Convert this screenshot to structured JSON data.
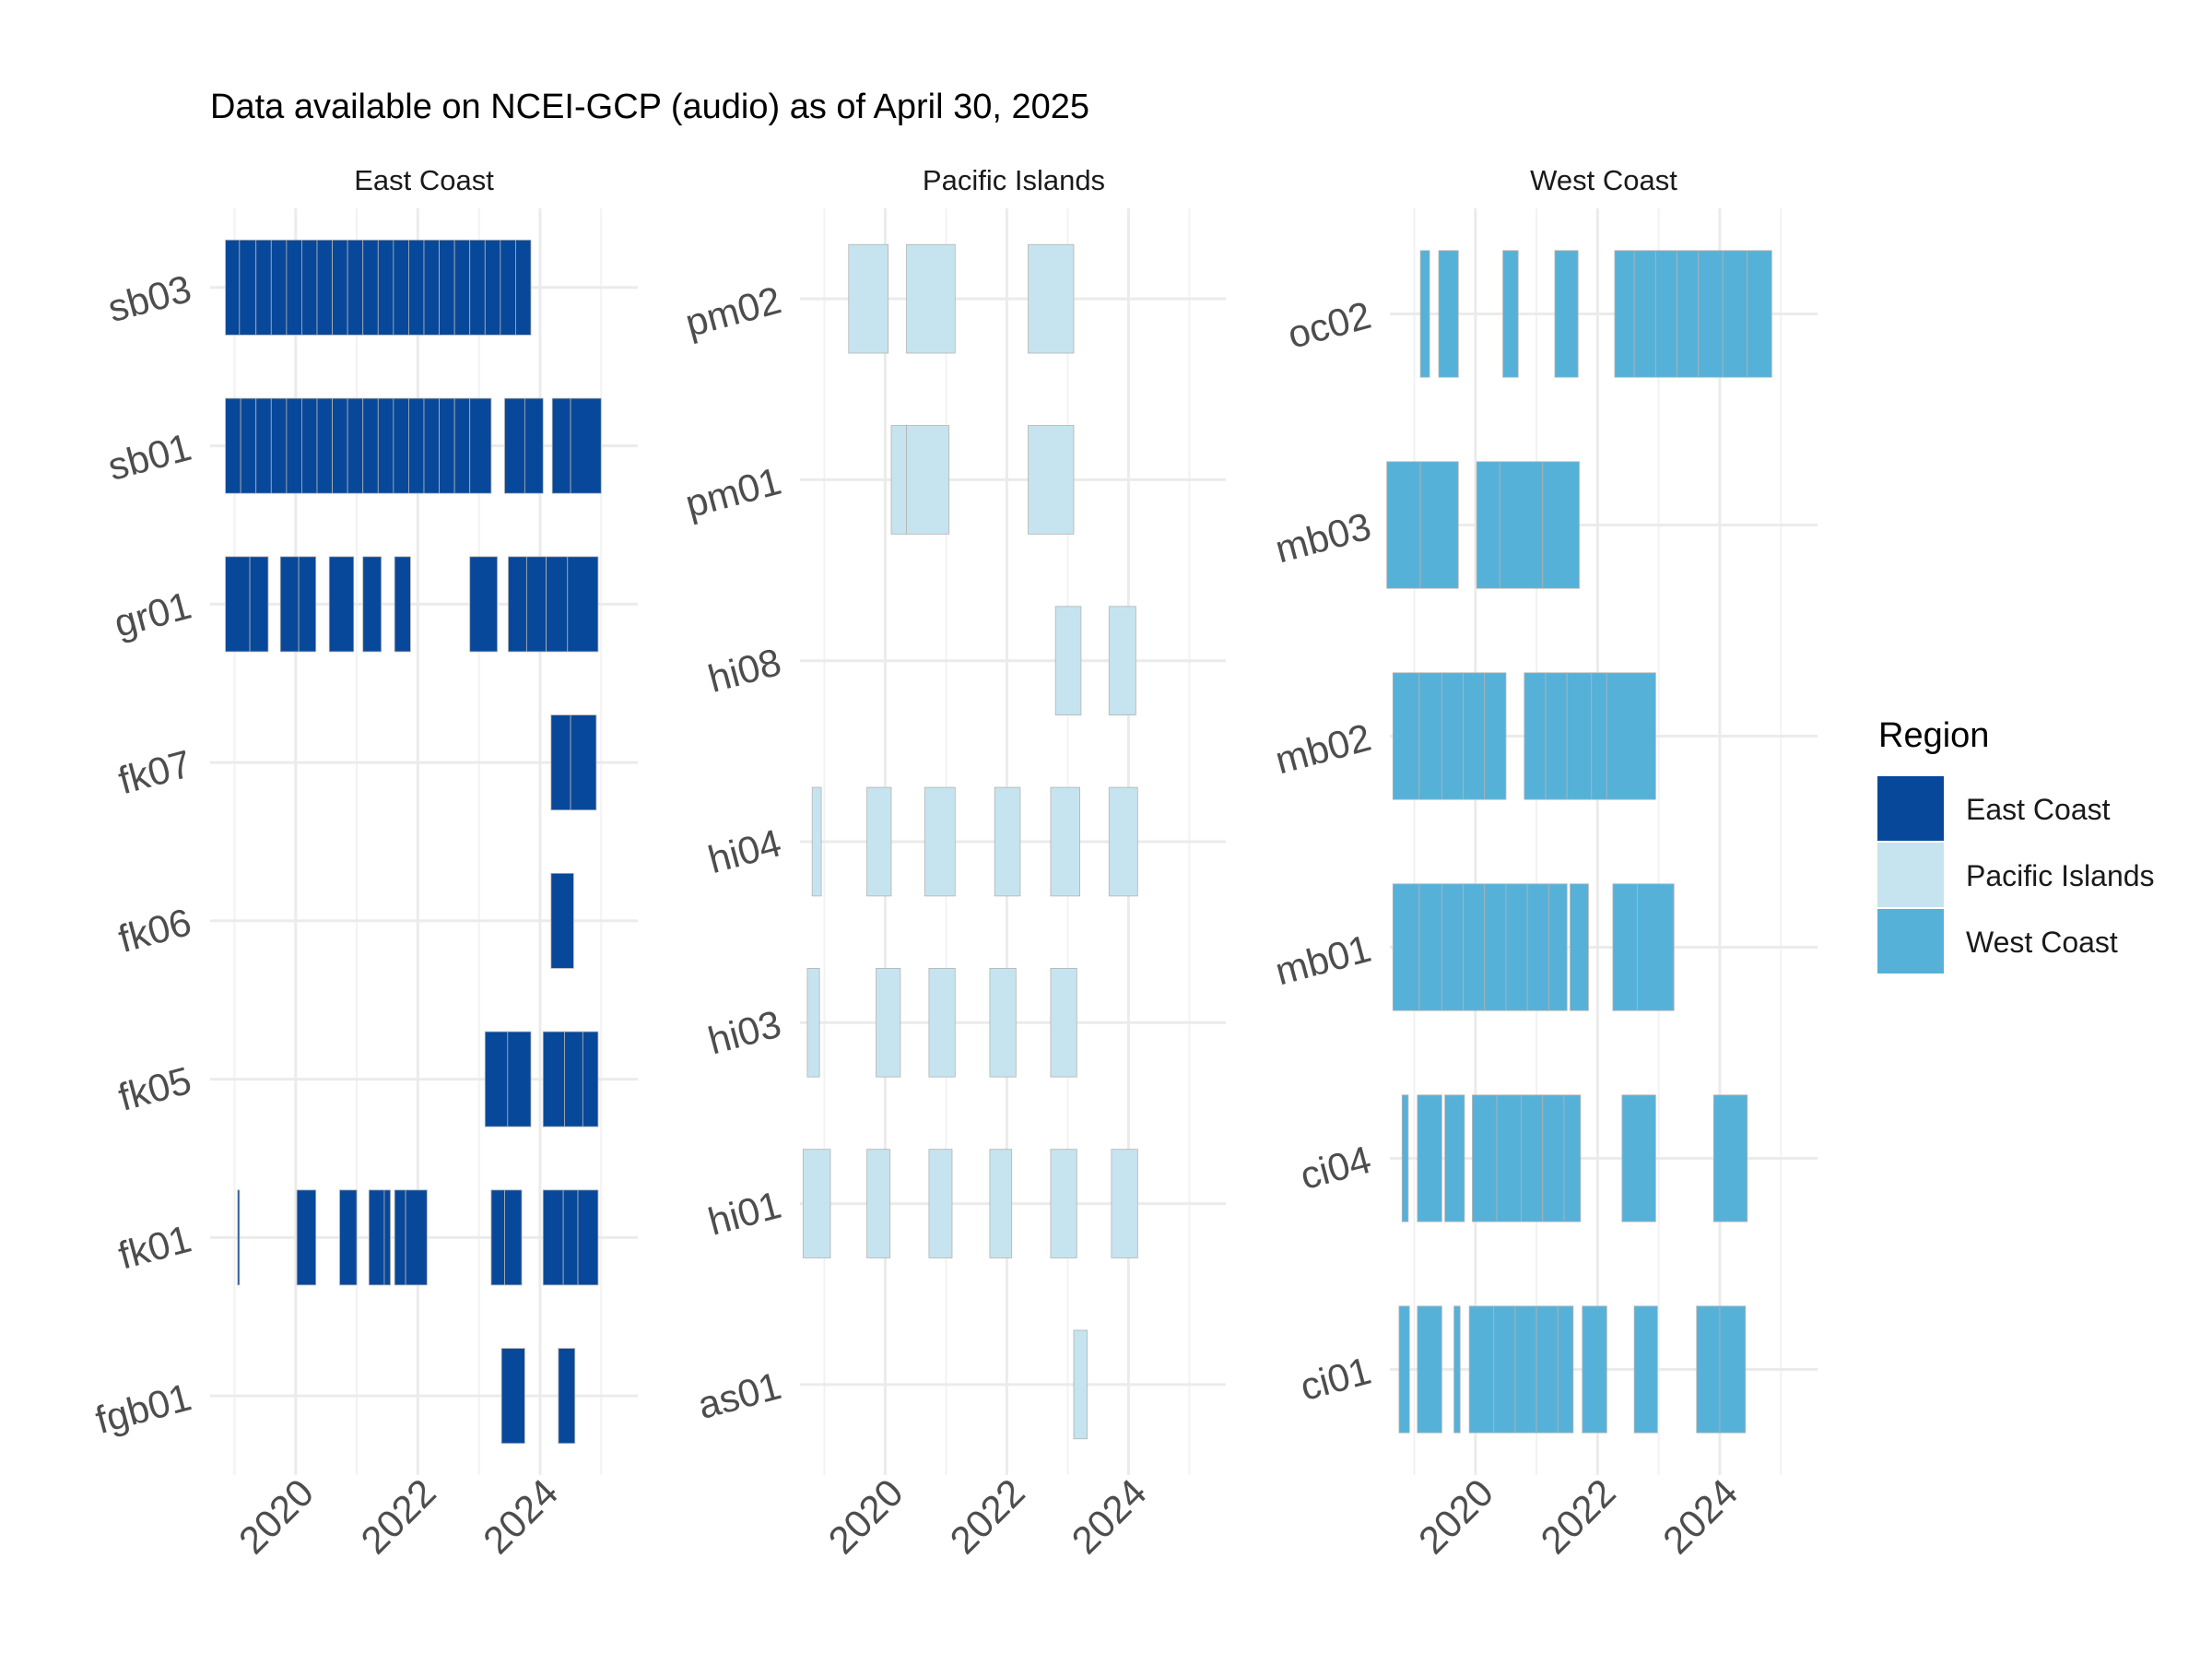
{
  "chart_data": {
    "type": "timeline",
    "title": "Data available on NCEI-GCP (audio) as of April 30, 2025",
    "xlabel": "",
    "ylabel": "",
    "x_ticks": [
      2020,
      2022,
      2024
    ],
    "xlim": [
      2018.6,
      2025.6
    ],
    "grid": true,
    "legend": {
      "title": "Region",
      "position": "right",
      "entries": [
        {
          "name": "East Coast",
          "color": "#08489a"
        },
        {
          "name": "Pacific Islands",
          "color": "#c6e4ef"
        },
        {
          "name": "West Coast",
          "color": "#56b1d9"
        }
      ]
    },
    "panels": [
      {
        "name": "East Coast",
        "color": "#08489a",
        "sites": [
          {
            "site": "sb03",
            "segments": [
              [
                2018.85,
                2019.08
              ],
              [
                2019.08,
                2019.35
              ],
              [
                2019.35,
                2019.6
              ],
              [
                2019.6,
                2019.85
              ],
              [
                2019.85,
                2020.1
              ],
              [
                2020.1,
                2020.35
              ],
              [
                2020.35,
                2020.6
              ],
              [
                2020.6,
                2020.85
              ],
              [
                2020.85,
                2021.1
              ],
              [
                2021.1,
                2021.35
              ],
              [
                2021.35,
                2021.6
              ],
              [
                2021.6,
                2021.85
              ],
              [
                2021.85,
                2022.1
              ],
              [
                2022.1,
                2022.35
              ],
              [
                2022.35,
                2022.6
              ],
              [
                2022.6,
                2022.85
              ],
              [
                2022.85,
                2023.1
              ],
              [
                2023.1,
                2023.35
              ],
              [
                2023.35,
                2023.6
              ],
              [
                2023.6,
                2023.85
              ]
            ]
          },
          {
            "site": "sb01",
            "segments": [
              [
                2018.85,
                2019.1
              ],
              [
                2019.1,
                2019.35
              ],
              [
                2019.35,
                2019.6
              ],
              [
                2019.6,
                2019.85
              ],
              [
                2019.85,
                2020.1
              ],
              [
                2020.1,
                2020.35
              ],
              [
                2020.35,
                2020.6
              ],
              [
                2020.6,
                2020.85
              ],
              [
                2020.85,
                2021.1
              ],
              [
                2021.1,
                2021.35
              ],
              [
                2021.35,
                2021.6
              ],
              [
                2021.6,
                2021.85
              ],
              [
                2021.85,
                2022.1
              ],
              [
                2022.1,
                2022.35
              ],
              [
                2022.35,
                2022.6
              ],
              [
                2022.6,
                2022.85
              ],
              [
                2022.85,
                2023.2
              ],
              [
                2023.42,
                2023.75
              ],
              [
                2023.75,
                2024.05
              ],
              [
                2024.2,
                2024.5
              ],
              [
                2024.5,
                2025.0
              ]
            ]
          },
          {
            "site": "gr01",
            "segments": [
              [
                2018.85,
                2019.25
              ],
              [
                2019.25,
                2019.55
              ],
              [
                2019.75,
                2020.05
              ],
              [
                2020.05,
                2020.33
              ],
              [
                2020.55,
                2020.95
              ],
              [
                2021.1,
                2021.4
              ],
              [
                2021.62,
                2021.88
              ],
              [
                2022.85,
                2023.3
              ],
              [
                2023.48,
                2023.78
              ],
              [
                2023.78,
                2024.1
              ],
              [
                2024.1,
                2024.45
              ],
              [
                2024.45,
                2024.95
              ]
            ]
          },
          {
            "site": "fk07",
            "segments": [
              [
                2024.18,
                2024.5
              ],
              [
                2024.5,
                2024.92
              ]
            ]
          },
          {
            "site": "fk06",
            "segments": [
              [
                2024.18,
                2024.55
              ]
            ]
          },
          {
            "site": "fk05",
            "segments": [
              [
                2023.1,
                2023.47
              ],
              [
                2023.47,
                2023.85
              ],
              [
                2024.05,
                2024.4
              ],
              [
                2024.4,
                2024.7
              ],
              [
                2024.7,
                2024.95
              ]
            ]
          },
          {
            "site": "fk01",
            "segments": [
              [
                2019.05,
                2019.08
              ],
              [
                2020.02,
                2020.33
              ],
              [
                2020.72,
                2021.0
              ],
              [
                2021.2,
                2021.45
              ],
              [
                2021.45,
                2021.55
              ],
              [
                2021.62,
                2021.8
              ],
              [
                2021.8,
                2022.15
              ],
              [
                2023.2,
                2023.42
              ],
              [
                2023.42,
                2023.7
              ],
              [
                2024.05,
                2024.38
              ],
              [
                2024.38,
                2024.62
              ],
              [
                2024.62,
                2024.95
              ]
            ]
          },
          {
            "site": "fgb01",
            "segments": [
              [
                2023.37,
                2023.75
              ],
              [
                2024.3,
                2024.57
              ]
            ]
          }
        ]
      },
      {
        "name": "Pacific Islands",
        "color": "#c6e4ef",
        "sites": [
          {
            "site": "pm02",
            "segments": [
              [
                2019.4,
                2020.05
              ],
              [
                2020.35,
                2021.15
              ],
              [
                2022.35,
                2023.1
              ]
            ]
          },
          {
            "site": "pm01",
            "segments": [
              [
                2020.1,
                2020.35
              ],
              [
                2020.35,
                2021.05
              ],
              [
                2022.35,
                2023.1
              ]
            ]
          },
          {
            "site": "hi08",
            "segments": [
              [
                2022.8,
                2023.22
              ],
              [
                2023.68,
                2024.12
              ]
            ]
          },
          {
            "site": "hi04",
            "segments": [
              [
                2018.8,
                2018.95
              ],
              [
                2019.7,
                2020.1
              ],
              [
                2020.65,
                2021.15
              ],
              [
                2021.8,
                2022.22
              ],
              [
                2022.72,
                2023.2
              ],
              [
                2023.68,
                2024.15
              ]
            ]
          },
          {
            "site": "hi03",
            "segments": [
              [
                2018.72,
                2018.92
              ],
              [
                2019.85,
                2020.25
              ],
              [
                2020.72,
                2021.15
              ],
              [
                2021.72,
                2022.15
              ],
              [
                2022.72,
                2023.15
              ]
            ]
          },
          {
            "site": "hi01",
            "segments": [
              [
                2018.65,
                2019.1
              ],
              [
                2019.7,
                2020.08
              ],
              [
                2020.72,
                2021.1
              ],
              [
                2021.72,
                2022.08
              ],
              [
                2022.72,
                2023.15
              ],
              [
                2023.72,
                2024.15
              ]
            ]
          },
          {
            "site": "as01",
            "segments": [
              [
                2023.1,
                2023.32
              ]
            ]
          }
        ]
      },
      {
        "name": "West Coast",
        "color": "#56b1d9",
        "sites": [
          {
            "site": "oc02",
            "segments": [
              [
                2019.1,
                2019.25
              ],
              [
                2019.4,
                2019.72
              ],
              [
                2020.45,
                2020.7
              ],
              [
                2021.3,
                2021.68
              ],
              [
                2022.28,
                2022.6
              ],
              [
                2022.6,
                2022.95
              ],
              [
                2022.95,
                2023.3
              ],
              [
                2023.3,
                2023.65
              ],
              [
                2023.65,
                2024.05
              ],
              [
                2024.05,
                2024.45
              ],
              [
                2024.45,
                2024.85
              ]
            ]
          },
          {
            "site": "mb03",
            "segments": [
              [
                2018.55,
                2019.1
              ],
              [
                2019.1,
                2019.72
              ],
              [
                2020.02,
                2020.4
              ],
              [
                2020.4,
                2021.1
              ],
              [
                2021.1,
                2021.7
              ]
            ]
          },
          {
            "site": "mb02",
            "segments": [
              [
                2018.65,
                2019.08
              ],
              [
                2019.08,
                2019.45
              ],
              [
                2019.45,
                2019.8
              ],
              [
                2019.8,
                2020.15
              ],
              [
                2020.15,
                2020.5
              ],
              [
                2020.8,
                2021.15
              ],
              [
                2021.15,
                2021.5
              ],
              [
                2021.5,
                2021.9
              ],
              [
                2021.9,
                2022.15
              ],
              [
                2022.15,
                2022.95
              ]
            ]
          },
          {
            "site": "mb01",
            "segments": [
              [
                2018.65,
                2019.08
              ],
              [
                2019.08,
                2019.45
              ],
              [
                2019.45,
                2019.8
              ],
              [
                2019.8,
                2020.15
              ],
              [
                2020.15,
                2020.5
              ],
              [
                2020.5,
                2020.85
              ],
              [
                2020.85,
                2021.2
              ],
              [
                2021.2,
                2021.5
              ],
              [
                2021.55,
                2021.85
              ],
              [
                2022.25,
                2022.65
              ],
              [
                2022.65,
                2023.25
              ]
            ]
          },
          {
            "site": "ci04",
            "segments": [
              [
                2018.8,
                2018.9
              ],
              [
                2019.05,
                2019.45
              ],
              [
                2019.5,
                2019.82
              ],
              [
                2019.95,
                2020.35
              ],
              [
                2020.35,
                2020.75
              ],
              [
                2020.75,
                2021.1
              ],
              [
                2021.1,
                2021.45
              ],
              [
                2021.45,
                2021.72
              ],
              [
                2022.4,
                2022.95
              ],
              [
                2023.9,
                2024.45
              ]
            ]
          },
          {
            "site": "ci01",
            "segments": [
              [
                2018.75,
                2018.92
              ],
              [
                2019.05,
                2019.45
              ],
              [
                2019.65,
                2019.75
              ],
              [
                2019.9,
                2020.3
              ],
              [
                2020.3,
                2020.65
              ],
              [
                2020.65,
                2021.0
              ],
              [
                2021.0,
                2021.35
              ],
              [
                2021.35,
                2021.6
              ],
              [
                2021.75,
                2022.15
              ],
              [
                2022.6,
                2022.98
              ],
              [
                2023.62,
                2024.0
              ],
              [
                2024.0,
                2024.42
              ]
            ]
          }
        ]
      }
    ]
  }
}
